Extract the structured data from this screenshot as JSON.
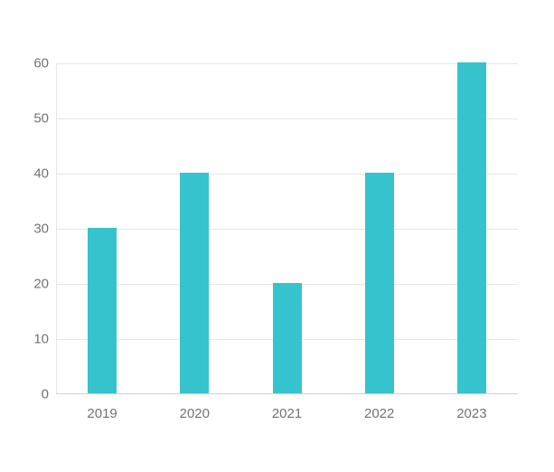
{
  "chart_data": {
    "type": "bar",
    "title": "",
    "xlabel": "",
    "ylabel": "",
    "categories": [
      "2019",
      "2020",
      "2021",
      "2022",
      "2023"
    ],
    "values": [
      30,
      40,
      20,
      40,
      60
    ],
    "ylim": [
      0,
      60
    ],
    "ytick_step": 10,
    "ytick_labels": [
      "0",
      "10",
      "20",
      "30",
      "40",
      "50",
      "60"
    ],
    "grid": "horizontal",
    "legend": "none",
    "colors": {
      "bar": "#35c4ce",
      "gridline": "#e6e6e6",
      "axis_line": "#d1d1d1",
      "tick_text": "#737373",
      "background": "#ffffff"
    }
  }
}
